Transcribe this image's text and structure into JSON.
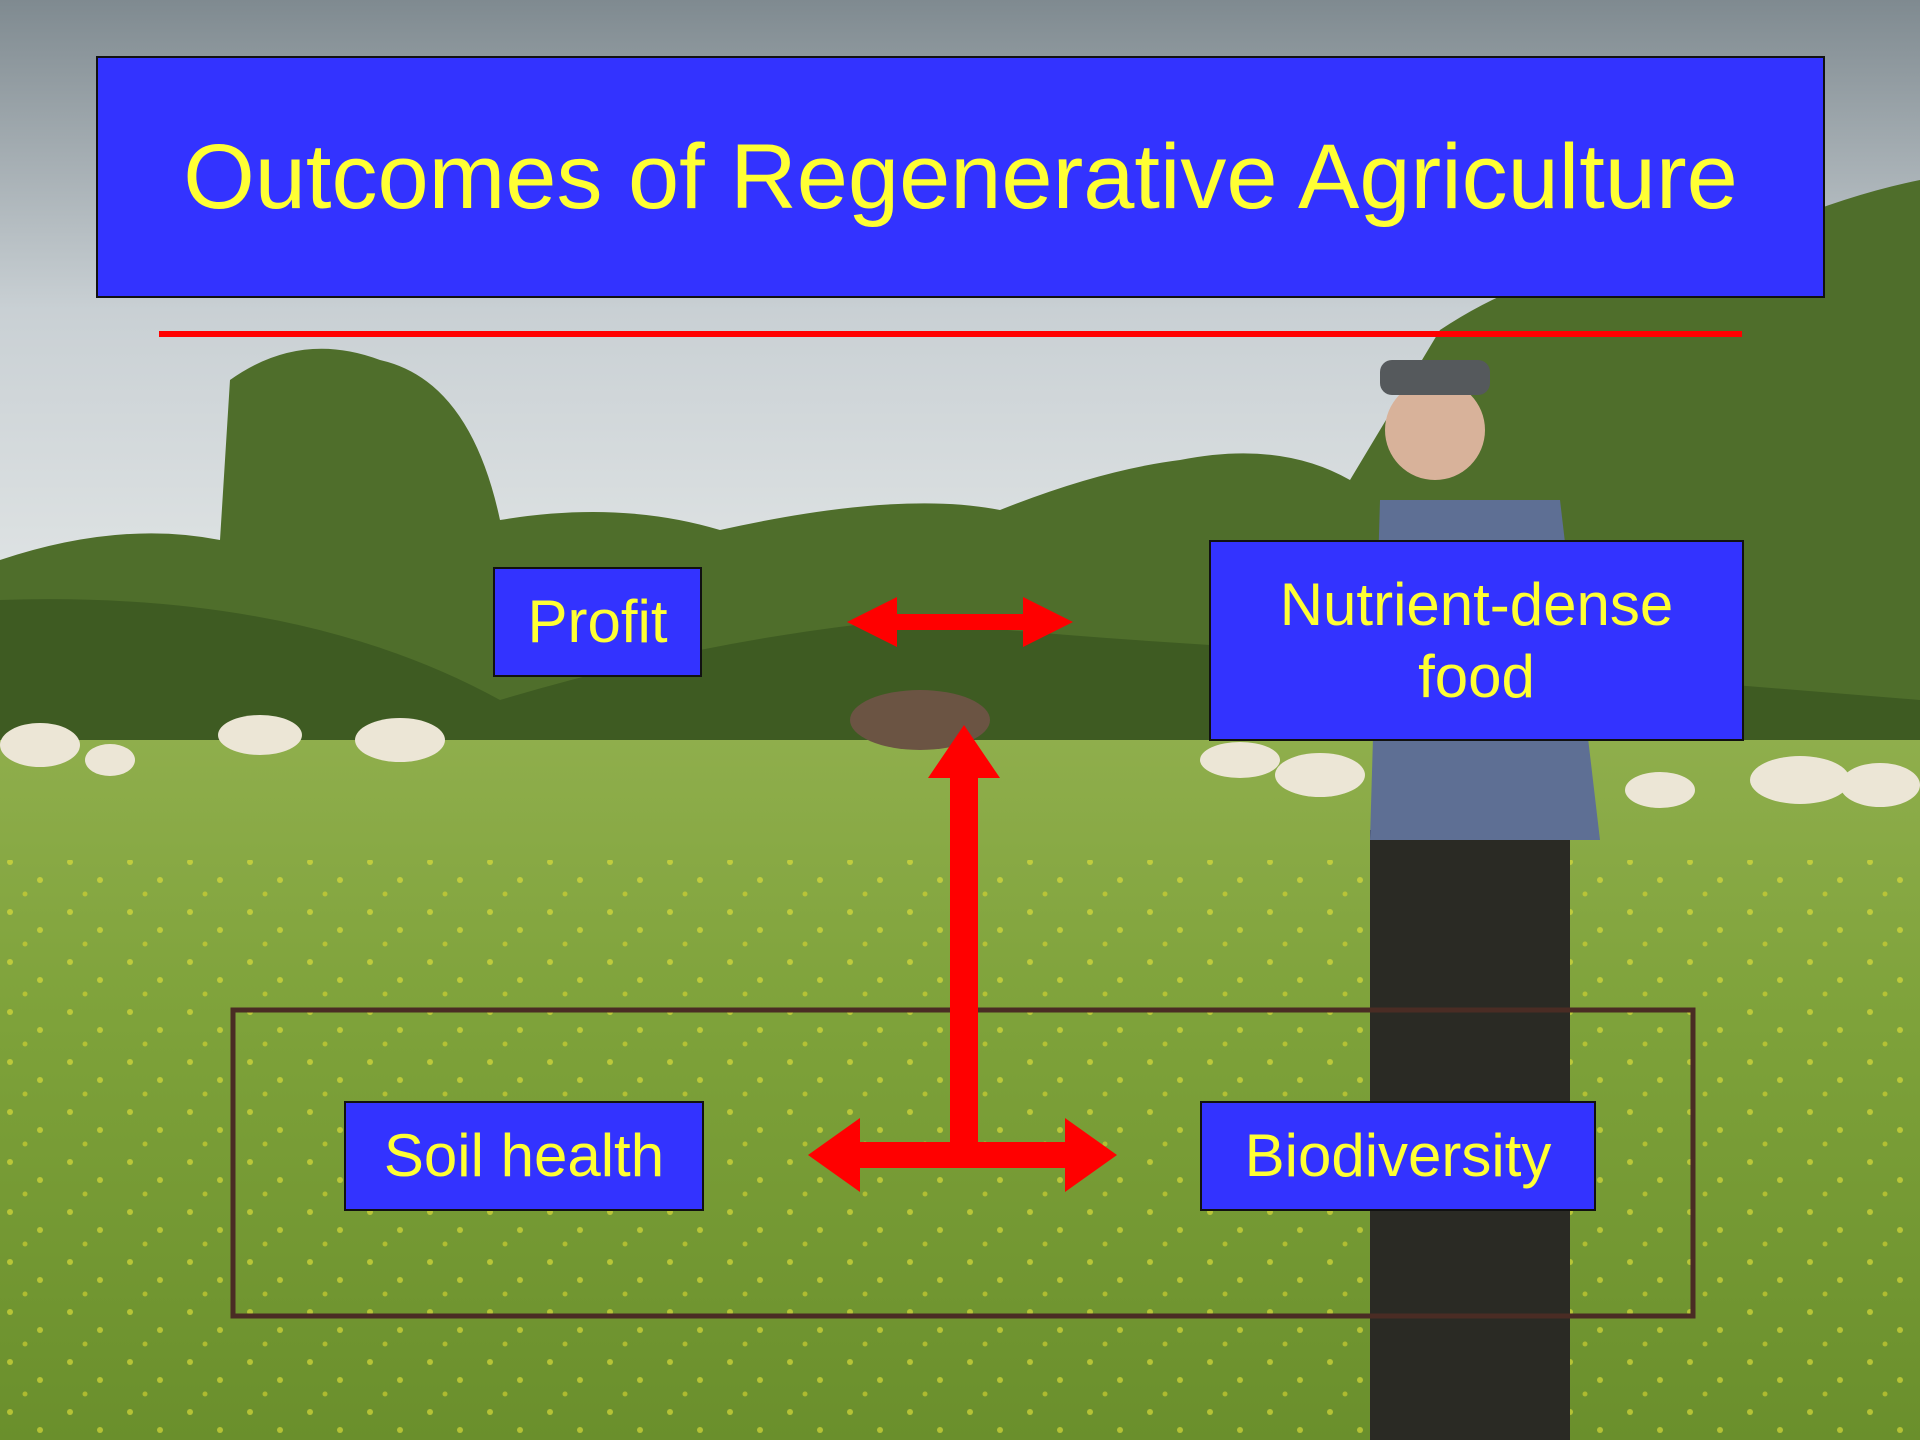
{
  "title": "Outcomes of Regenerative Agriculture",
  "nodes": [
    {
      "label": "Profit"
    },
    {
      "label": "Nutrient-dense food"
    },
    {
      "label": "Soil health"
    },
    {
      "label": "Biodiversity"
    }
  ]
}
